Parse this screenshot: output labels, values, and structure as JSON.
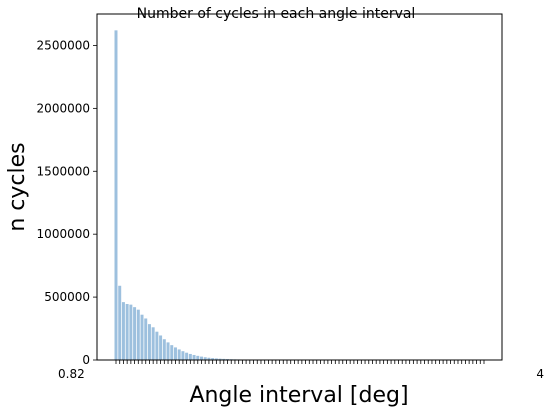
{
  "chart_data": {
    "type": "bar",
    "title": "Number of cycles in each angle interval",
    "xlabel": "Angle interval [deg]",
    "ylabel": "n cycles",
    "ylim": [
      0,
      2750000
    ],
    "yticks": [
      0,
      500000,
      1000000,
      1500000,
      2000000,
      2500000
    ],
    "ytick_labels": [
      "0",
      "500000",
      "1000000",
      "1500000",
      "2000000",
      "2500000"
    ],
    "x_tick_label_first": "0.82",
    "x_tick_label_last": "4",
    "bar_color": "#9dc0de",
    "values": [
      2620000,
      590000,
      460000,
      445000,
      440000,
      420000,
      400000,
      360000,
      330000,
      285000,
      260000,
      225000,
      195000,
      165000,
      140000,
      118000,
      100000,
      84000,
      70000,
      58000,
      48000,
      40000,
      33000,
      27000,
      22000,
      18000,
      15000,
      12500,
      10500,
      9000,
      7500,
      6300,
      5300,
      4500,
      3800,
      3200,
      2700,
      2300,
      2000,
      1700,
      1450,
      1250,
      1100,
      950,
      820,
      710,
      620,
      540,
      470,
      410,
      360,
      320,
      280,
      250,
      220,
      200,
      180,
      160,
      145,
      130,
      118,
      107,
      97,
      88,
      80,
      73,
      66,
      60,
      55,
      50,
      46,
      42,
      38,
      35,
      32,
      29,
      27,
      25,
      23,
      21,
      19,
      18,
      16,
      15,
      14,
      13,
      12,
      11,
      10,
      9,
      9,
      8,
      8,
      7,
      7,
      6,
      6,
      5,
      5,
      5
    ]
  }
}
